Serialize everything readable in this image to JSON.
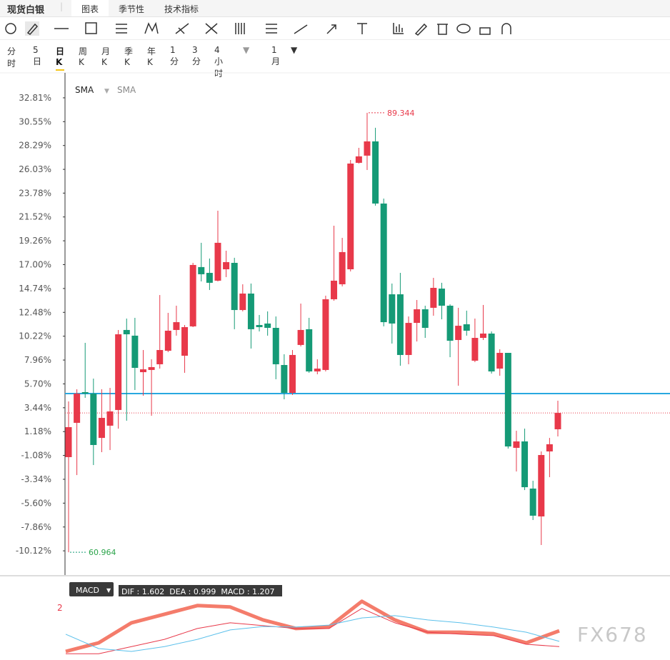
{
  "header": {
    "title": "现货白银",
    "tabs": [
      "图表",
      "季节性",
      "技术指标"
    ]
  },
  "periods": [
    "分时",
    "5日",
    "日K",
    "周K",
    "月K",
    "季K",
    "年K",
    "1分",
    "3分",
    "4小时"
  ],
  "interval": "1月",
  "watermark": "FX678",
  "chart_data": [
    {
      "type": "candlestick",
      "indicators": [
        "SMA",
        "SMA"
      ],
      "ylim": [
        -12.41,
        35.31
      ],
      "yticks": [
        {
          "value": 32.81,
          "label": "32.81%"
        },
        {
          "value": 30.55,
          "label": "30.55%"
        },
        {
          "value": 28.29,
          "label": "28.29%"
        },
        {
          "value": 26.03,
          "label": "26.03%"
        },
        {
          "value": 23.78,
          "label": "23.78%"
        },
        {
          "value": 21.52,
          "label": "21.52%"
        },
        {
          "value": 19.26,
          "label": "19.26%"
        },
        {
          "value": 17.0,
          "label": "17.00%"
        },
        {
          "value": 14.74,
          "label": "14.74%"
        },
        {
          "value": 12.48,
          "label": "12.48%"
        },
        {
          "value": 10.22,
          "label": "10.22%"
        },
        {
          "value": 7.96,
          "label": "7.96%"
        },
        {
          "value": 5.7,
          "label": "5.70%"
        },
        {
          "value": 3.44,
          "label": "3.44%"
        },
        {
          "value": 1.18,
          "label": "1.18%"
        },
        {
          "value": -1.08,
          "label": "-1.08%"
        },
        {
          "value": -3.34,
          "label": "-3.34%"
        },
        {
          "value": -5.6,
          "label": "-5.60%"
        },
        {
          "value": -7.86,
          "label": "-7.86%"
        },
        {
          "value": -10.12,
          "label": "-10.12%"
        }
      ],
      "up_color": "#e8394a",
      "down_color": "#159a76",
      "hline": 4.78,
      "hline_color": "#29a8e0",
      "max_label": "89.344",
      "min_label": "60.964",
      "open": [
        -1.24,
        2.01,
        4.92,
        4.78,
        0.58,
        1.74,
        3.23,
        10.81,
        10.27,
        6.81,
        7.02,
        7.56,
        8.84,
        10.81,
        8.37,
        11.15,
        16.77,
        16.22,
        15.48,
        16.56,
        17.17,
        12.7,
        14.26,
        11.28,
        11.42,
        11.01,
        7.49,
        4.85,
        9.39,
        10.88,
        6.88,
        7.02,
        13.72,
        15.14,
        16.56,
        26.65,
        27.33,
        28.68,
        22.79,
        14.19,
        14.19,
        8.44,
        11.48,
        12.77,
        12.91,
        14.73,
        13.11,
        9.86,
        11.35,
        7.9,
        10.06,
        10.47,
        7.15,
        8.64,
        -0.36,
        0.25,
        -4.22,
        -6.86,
        -0.7,
        1.4
      ],
      "high": [
        4.04,
        5.19,
        9.59,
        6.2,
        5.19,
        5.32,
        10.81,
        11.89,
        11.96,
        8.91,
        8.03,
        14.12,
        12.43,
        13.11,
        11.28,
        17.17,
        19.07,
        17.58,
        22.11,
        18.32,
        17.65,
        15.14,
        15.21,
        12.23,
        12.57,
        12.09,
        8.51,
        8.91,
        13.31,
        11.96,
        8.03,
        14.06,
        20.69,
        19.54,
        26.92,
        28.07,
        31.39,
        29.97,
        23.26,
        15.21,
        16.22,
        12.09,
        13.65,
        13.11,
        15.75,
        15.28,
        13.24,
        12.91,
        12.64,
        11.89,
        13.18,
        10.67,
        8.98,
        8.64,
        1.26,
        1.46,
        -3.48,
        -0.7,
        0.58,
        4.11
      ],
      "low": [
        -10.25,
        -2.94,
        4.38,
        -1.99,
        -0.77,
        -0.57,
        1.46,
        2.21,
        5.12,
        4.58,
        2.68,
        7.15,
        8.71,
        10.27,
        6.75,
        11.08,
        15.41,
        14.6,
        15.41,
        15.82,
        10.88,
        12.57,
        9.05,
        10.67,
        10.27,
        6.14,
        4.24,
        4.65,
        9.25,
        6.75,
        6.61,
        6.88,
        13.58,
        14.94,
        16.36,
        26.58,
        25.97,
        22.59,
        11.15,
        9.52,
        7.42,
        7.56,
        9.72,
        10.06,
        12.16,
        11.82,
        8.23,
        5.53,
        10.27,
        7.76,
        9.86,
        6.68,
        6.47,
        -0.43,
        -2.6,
        -4.36,
        -7.2,
        -9.57,
        -3.14,
        0.72
      ],
      "close": [
        1.6,
        4.78,
        4.78,
        -0.09,
        2.48,
        3.09,
        10.4,
        10.4,
        7.22,
        7.08,
        7.29,
        8.91,
        10.74,
        11.55,
        11.08,
        16.97,
        16.09,
        15.28,
        19.07,
        17.24,
        12.7,
        14.26,
        10.88,
        11.08,
        11.01,
        7.56,
        4.85,
        8.44,
        10.81,
        6.88,
        7.15,
        13.72,
        15.48,
        18.19,
        26.58,
        27.26,
        28.68,
        22.79,
        11.55,
        11.42,
        8.44,
        11.48,
        12.77,
        11.01,
        14.8,
        13.11,
        9.79,
        11.21,
        10.74,
        10.06,
        10.47,
        6.88,
        8.64,
        -0.23,
        0.25,
        -4.09,
        -6.79,
        -1.04,
        -0.02,
        2.95
      ]
    },
    {
      "type": "line",
      "legend_button": "MACD",
      "legend_text": "DIF : 1.602  DEA : 0.999  MACD : 1.207",
      "ylim": [
        0.28,
        2.4
      ],
      "yticks": [
        2
      ],
      "series": [
        {
          "color": "#f47c6b",
          "values": [
            0.48,
            0.78,
            1.48,
            1.78,
            2.08,
            2.03,
            1.58,
            1.28,
            1.33,
            2.23,
            1.58,
            1.15,
            1.15,
            1.1,
            0.78,
            1.2
          ]
        },
        {
          "color": "#e8394a",
          "values": [
            0.4,
            0.4,
            0.65,
            0.9,
            1.28,
            1.48,
            1.38,
            1.28,
            1.28,
            1.98,
            1.48,
            1.15,
            1.08,
            1.03,
            0.73,
            0.65
          ]
        },
        {
          "color": "#5bc0eb",
          "values": [
            1.08,
            0.58,
            0.48,
            0.65,
            0.9,
            1.23,
            1.35,
            1.33,
            1.4,
            1.65,
            1.73,
            1.58,
            1.48,
            1.33,
            1.15,
            0.83
          ]
        }
      ]
    }
  ]
}
